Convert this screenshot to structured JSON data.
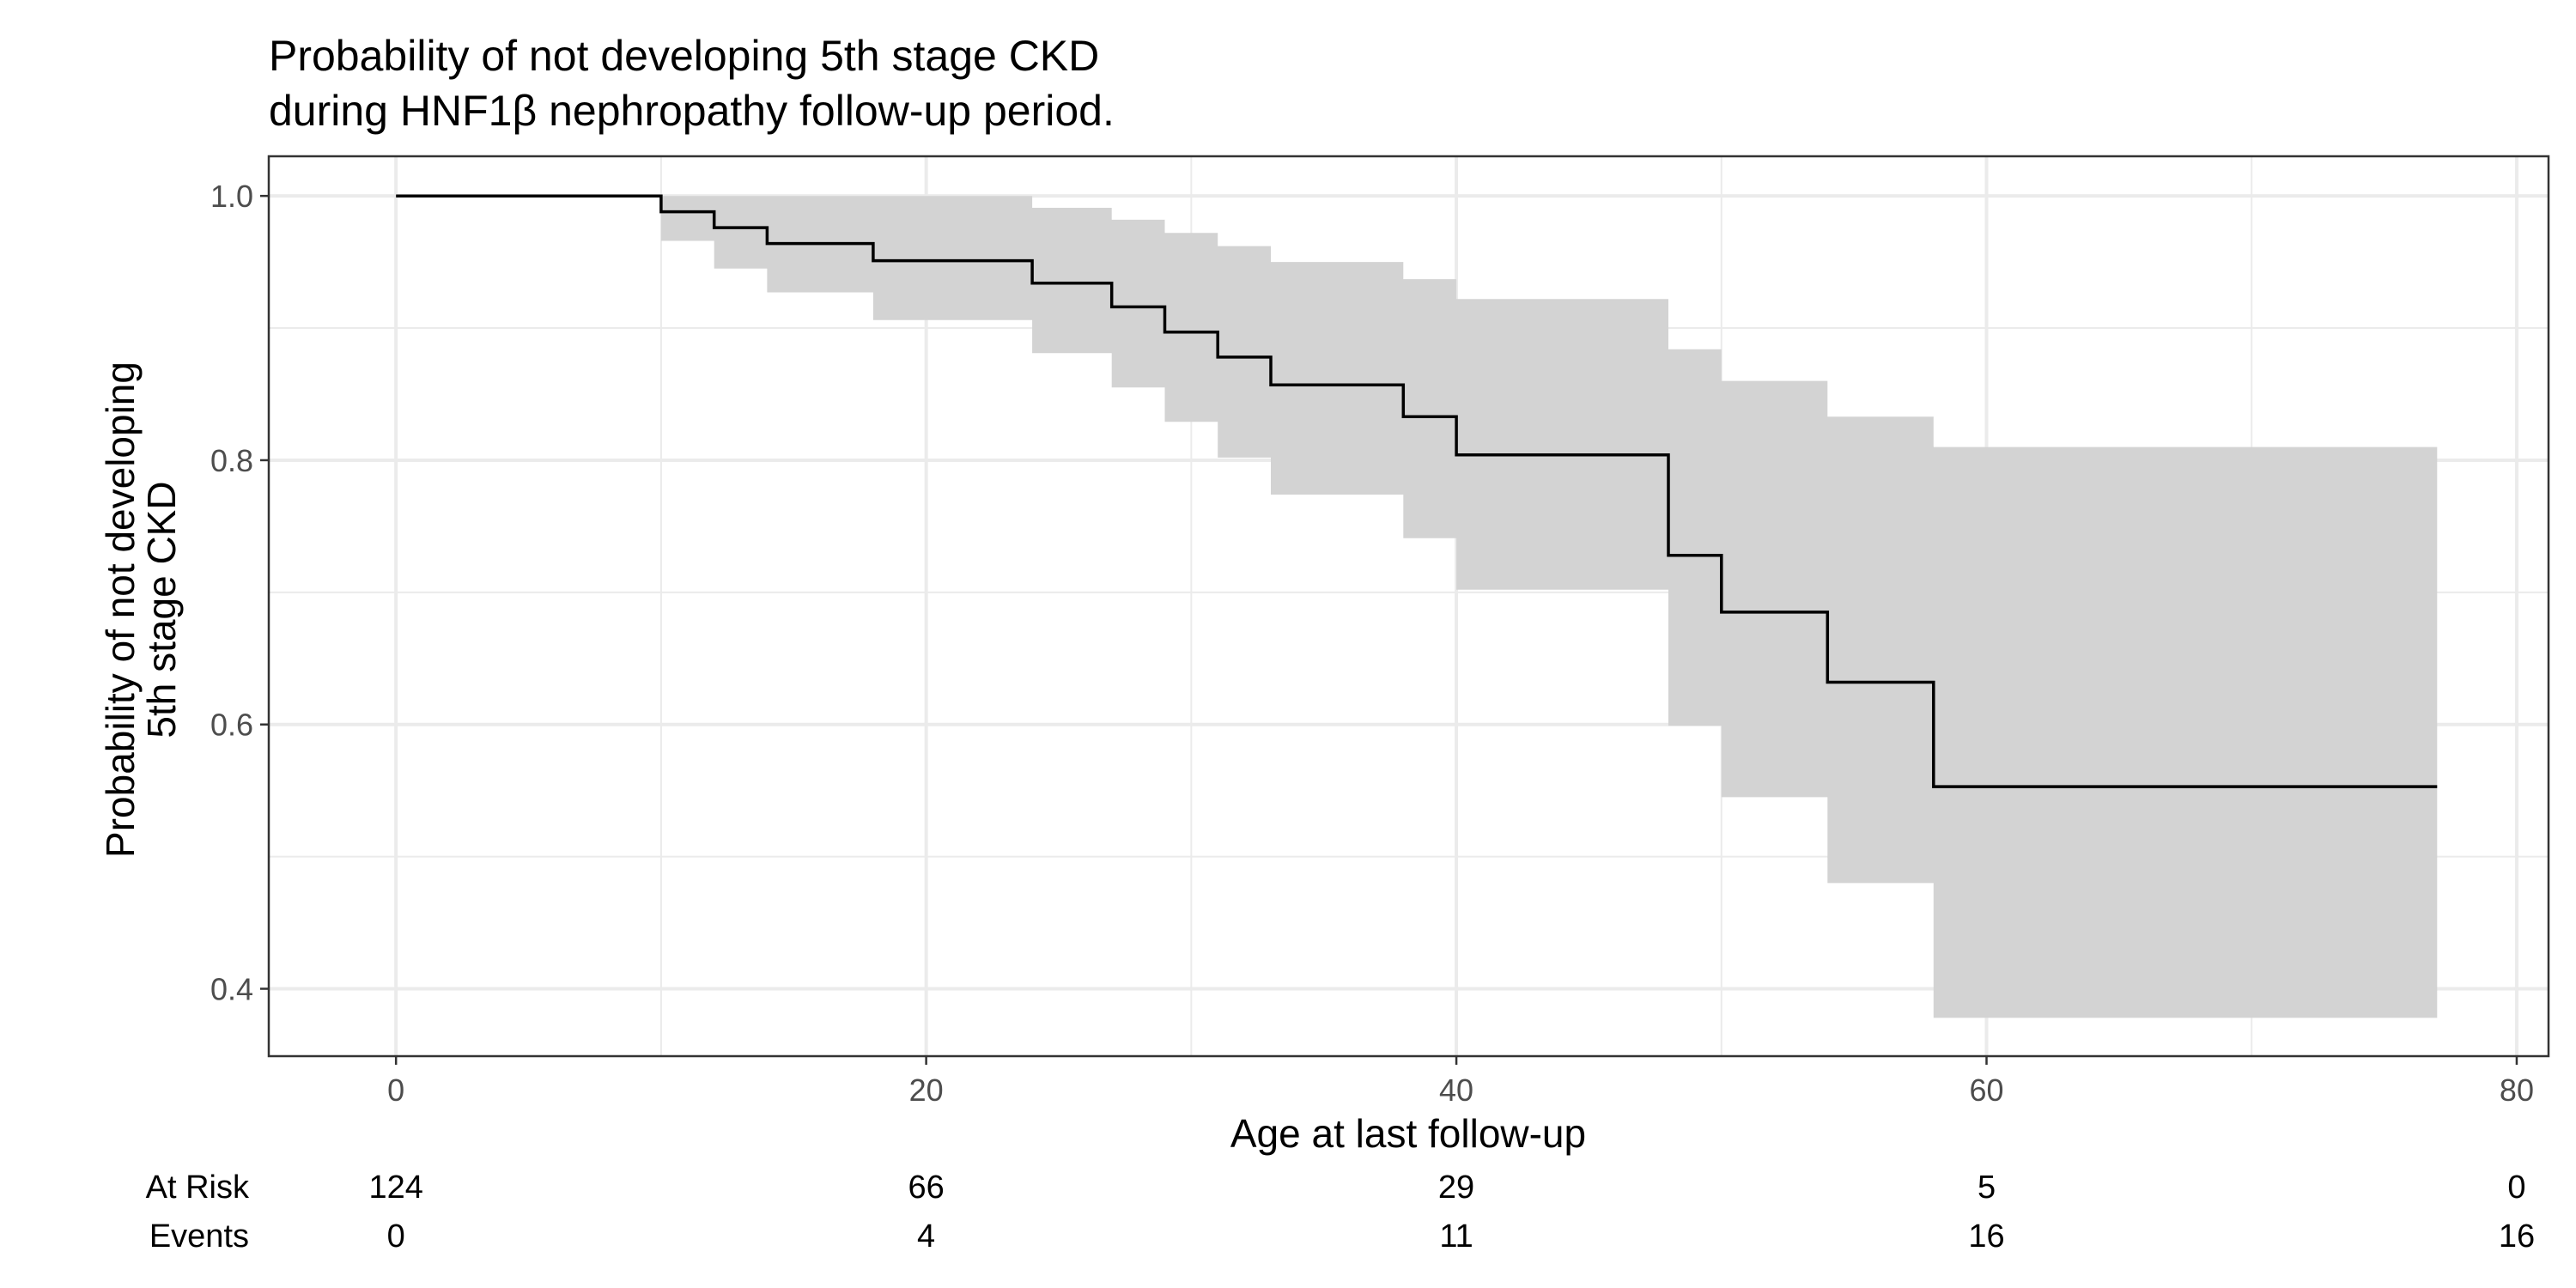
{
  "chart_data": {
    "type": "km",
    "title": [
      "Probability of not developing 5th stage CKD",
      "during HNF1β nephropathy follow-up period."
    ],
    "xlabel": "Age at last follow-up",
    "ylabel": [
      "Probability of not developing",
      "5th stage CKD"
    ],
    "xlim": [
      -4.8,
      81.2
    ],
    "ylim": [
      0.349,
      1.03
    ],
    "grid": true,
    "x_ticks": [
      0,
      20,
      40,
      60,
      80
    ],
    "x_tick_labels": [
      "0",
      "20",
      "40",
      "60",
      "80"
    ],
    "y_ticks": [
      0.4,
      0.6,
      0.8,
      1.0
    ],
    "y_tick_labels": [
      "0.4",
      "0.6",
      "0.8",
      "1.0"
    ],
    "y_minor_ticks": [
      0.5,
      0.7,
      0.9
    ],
    "x_minor_ticks": [
      10,
      30,
      50,
      70
    ],
    "survival_curve": {
      "x": [
        0,
        10,
        12,
        14,
        18,
        24,
        27,
        29,
        31,
        33,
        38,
        40,
        48,
        50,
        54,
        58,
        77
      ],
      "y": [
        1.0,
        0.988,
        0.976,
        0.964,
        0.951,
        0.934,
        0.916,
        0.897,
        0.878,
        0.857,
        0.833,
        0.804,
        0.728,
        0.685,
        0.632,
        0.553,
        0.553
      ]
    },
    "confidence_band": {
      "x": [
        0,
        10,
        12,
        14,
        18,
        24,
        27,
        29,
        31,
        33,
        38,
        40,
        48,
        50,
        54,
        58,
        77
      ],
      "lower": [
        1.0,
        0.966,
        0.945,
        0.927,
        0.906,
        0.881,
        0.855,
        0.829,
        0.802,
        0.774,
        0.741,
        0.702,
        0.599,
        0.545,
        0.48,
        0.378,
        0.378
      ],
      "upper": [
        1.0,
        1.0,
        1.0,
        1.0,
        1.0,
        0.991,
        0.982,
        0.972,
        0.962,
        0.95,
        0.937,
        0.922,
        0.884,
        0.86,
        0.833,
        0.81,
        0.81
      ],
      "color": "#d3d3d3"
    },
    "risk_table": {
      "rows": [
        {
          "label": "At Risk",
          "values": [
            "124",
            "66",
            "29",
            "5",
            "0"
          ]
        },
        {
          "label": "Events",
          "values": [
            "0",
            "4",
            "11",
            "16",
            "16"
          ]
        }
      ],
      "x": [
        0,
        20,
        40,
        60,
        80
      ]
    },
    "colors": {
      "line": "#000000",
      "grid": "#ebebeb",
      "border": "#333333"
    }
  }
}
